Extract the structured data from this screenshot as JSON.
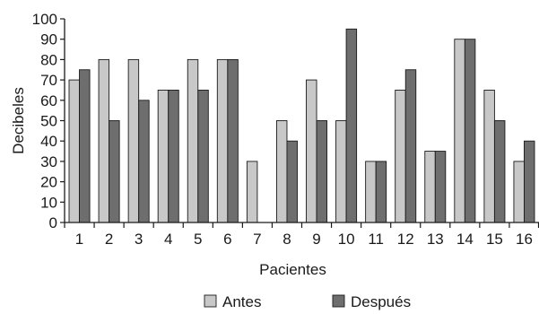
{
  "chart_data": {
    "type": "bar",
    "xlabel": "Pacientes",
    "ylabel": "Decibeles",
    "ylim": [
      0,
      100
    ],
    "yticks": [
      0,
      10,
      20,
      30,
      40,
      50,
      60,
      70,
      80,
      90,
      100
    ],
    "categories": [
      "1",
      "2",
      "3",
      "4",
      "5",
      "6",
      "7",
      "8",
      "9",
      "10",
      "11",
      "12",
      "13",
      "14",
      "15",
      "16"
    ],
    "series": [
      {
        "name": "Antes",
        "color": "#c8c8c8",
        "values": [
          70,
          80,
          80,
          65,
          80,
          80,
          30,
          50,
          70,
          50,
          30,
          65,
          35,
          90,
          65,
          30
        ]
      },
      {
        "name": "Después",
        "color": "#6e6e6e",
        "values": [
          75,
          50,
          60,
          65,
          65,
          80,
          0,
          40,
          50,
          95,
          30,
          75,
          35,
          90,
          50,
          40
        ]
      }
    ],
    "grid": false,
    "legend_position": "bottom"
  }
}
